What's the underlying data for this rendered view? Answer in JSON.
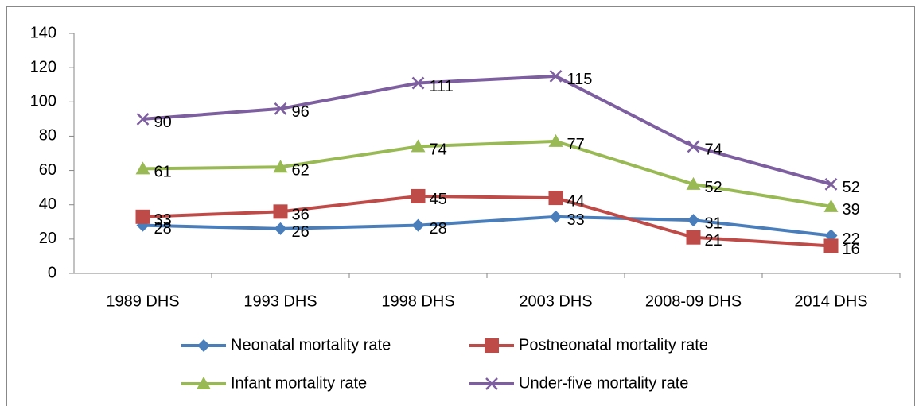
{
  "chart_data": {
    "type": "line",
    "categories": [
      "1989 DHS",
      "1993 DHS",
      "1998 DHS",
      "2003 DHS",
      "2008-09 DHS",
      "2014 DHS"
    ],
    "series": [
      {
        "name": "Neonatal mortality rate",
        "color": "#4a7ebb",
        "marker": "diamond",
        "values": [
          28,
          26,
          28,
          33,
          31,
          22
        ]
      },
      {
        "name": "Postneonatal mortality rate",
        "color": "#be4b48",
        "marker": "square",
        "values": [
          33,
          36,
          45,
          44,
          21,
          16
        ]
      },
      {
        "name": "Infant mortality rate",
        "color": "#98b954",
        "marker": "triangle",
        "values": [
          61,
          62,
          74,
          77,
          52,
          39
        ]
      },
      {
        "name": "Under-five mortality rate",
        "color": "#7d5fa0",
        "marker": "x",
        "values": [
          90,
          96,
          111,
          115,
          74,
          52
        ]
      }
    ],
    "ylim": [
      0,
      140
    ],
    "yticks": [
      0,
      20,
      40,
      60,
      80,
      100,
      120,
      140
    ],
    "grid": false,
    "legend": "bottom"
  }
}
